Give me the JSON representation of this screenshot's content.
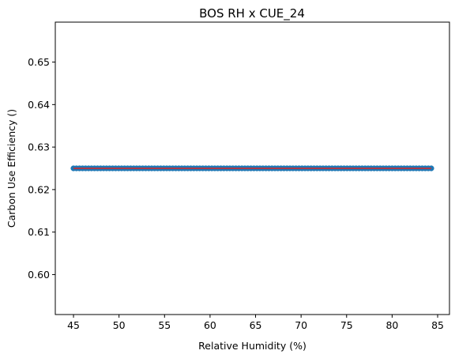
{
  "chart_data": {
    "type": "scatter",
    "title": "BOS RH x CUE_24",
    "xlabel": "Relative Humidity (%)",
    "ylabel": "Carbon Use Efficiency ()",
    "xlim": [
      43.0,
      86.3
    ],
    "ylim": [
      0.5906,
      0.6594
    ],
    "xticks": [
      45,
      50,
      55,
      60,
      65,
      70,
      75,
      80,
      85
    ],
    "yticks": [
      0.6,
      0.61,
      0.62,
      0.63,
      0.64,
      0.65
    ],
    "ytick_labels": [
      "0.60",
      "0.61",
      "0.62",
      "0.63",
      "0.64",
      "0.65"
    ],
    "grid": false,
    "series": [
      {
        "kind": "scatter",
        "color": "#1f77b4",
        "x_start": 45.0,
        "x_end": 84.3,
        "n_points": 120,
        "y_constant": 0.625
      },
      {
        "kind": "line",
        "color": "#d62728",
        "x": [
          45.0,
          84.3
        ],
        "y": [
          0.625,
          0.625
        ]
      }
    ]
  }
}
